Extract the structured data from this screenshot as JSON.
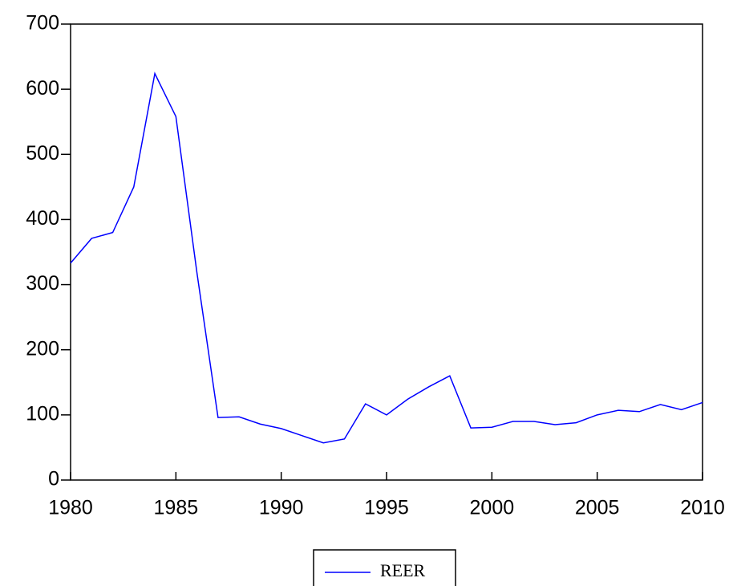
{
  "chart_data": {
    "type": "line",
    "x": [
      1980,
      1981,
      1982,
      1983,
      1984,
      1985,
      1986,
      1987,
      1988,
      1989,
      1990,
      1991,
      1992,
      1993,
      1994,
      1995,
      1996,
      1997,
      1998,
      1999,
      2000,
      2001,
      2002,
      2003,
      2004,
      2005,
      2006,
      2007,
      2008,
      2009,
      2010
    ],
    "series": [
      {
        "name": "REER",
        "color": "#0000ff",
        "values": [
          333,
          371,
          380,
          450,
          624,
          558,
          318,
          96,
          97,
          86,
          79,
          68,
          57,
          63,
          117,
          100,
          124,
          143,
          160,
          80,
          81,
          90,
          90,
          85,
          88,
          100,
          107,
          105,
          116,
          108,
          119
        ]
      }
    ],
    "xlim": [
      1980,
      2010
    ],
    "xticks": [
      1980,
      1985,
      1990,
      1995,
      2000,
      2005,
      2010
    ],
    "ylim": [
      0,
      700
    ],
    "yticks": [
      0,
      100,
      200,
      300,
      400,
      500,
      600,
      700
    ],
    "legend": "bottom"
  }
}
